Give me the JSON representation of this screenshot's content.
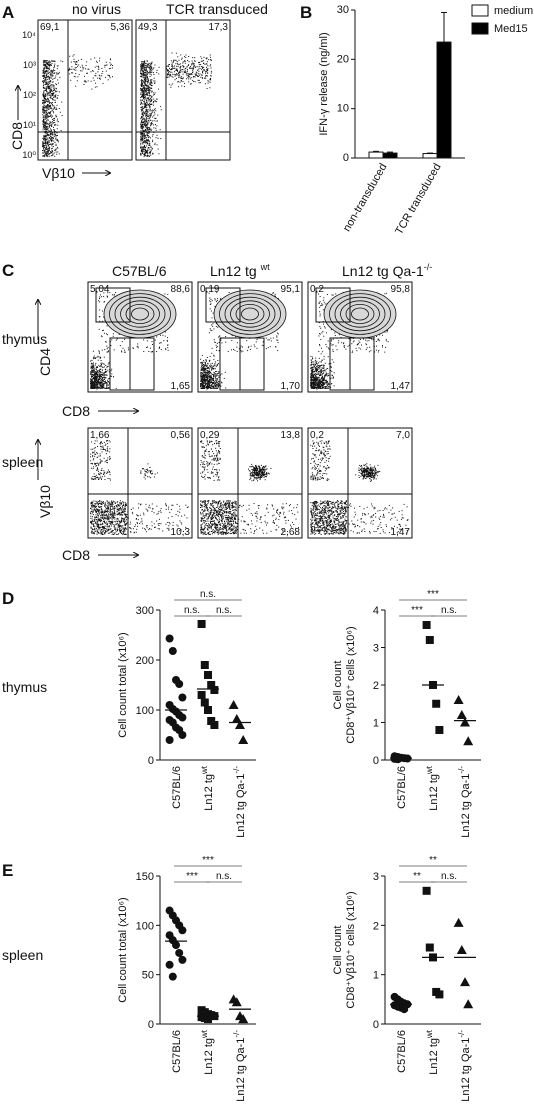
{
  "panels": {
    "A": "A",
    "B": "B",
    "C": "C",
    "D": "D",
    "E": "E"
  },
  "panelA": {
    "headers": [
      "no virus",
      "TCR transduced"
    ],
    "yaxis": "CD8",
    "xaxis": "Vβ10",
    "plots": [
      {
        "ul": "69,1",
        "ur": "5,36"
      },
      {
        "ul": "49,3",
        "ur": "17,3"
      }
    ],
    "ticks": [
      "10⁰",
      "10¹",
      "10²",
      "10³",
      "10⁴"
    ]
  },
  "panelC": {
    "headers": [
      "C57BL/6",
      "Ln12 tg wt",
      "Ln12 tg Qa-1-/-"
    ],
    "header_sup": [
      "",
      "wt",
      "-/-"
    ],
    "header_base": [
      "C57BL/6",
      "Ln12 tg ",
      "Ln12 tg Qa-1"
    ],
    "rows": [
      {
        "label": "thymus",
        "yaxis": "CD4",
        "xaxis": "CD8",
        "plots": [
          {
            "ul": "5,04",
            "ur": "88,6",
            "ll": "2,31",
            "lr": "1,65"
          },
          {
            "ul": "0,19",
            "ur": "95,1",
            "ll": "1,79",
            "lr": "1,70"
          },
          {
            "ul": "0,2",
            "ur": "95,8",
            "ll": "1,52",
            "lr": "1,47"
          }
        ]
      },
      {
        "label": "spleen",
        "yaxis": "Vβ10",
        "xaxis": "CD8",
        "plots": [
          {
            "ul": "1,66",
            "ur": "0,56",
            "lr": "10,3"
          },
          {
            "ul": "0,29",
            "ur": "13,8",
            "lr": "2,68"
          },
          {
            "ul": "0,2",
            "ur": "7,0",
            "lr": "1,47"
          }
        ]
      }
    ]
  },
  "chart_data": [
    {
      "id": "B",
      "type": "bar",
      "categories": [
        "non-transduced",
        "TCR transduced"
      ],
      "series": [
        {
          "name": "medium",
          "color": "#ffffff",
          "values": [
            1.2,
            0.9
          ],
          "errors": [
            0.15,
            0.1
          ]
        },
        {
          "name": "Med15",
          "color": "#000000",
          "values": [
            1.0,
            23.5
          ],
          "errors": [
            0.2,
            6.0
          ]
        }
      ],
      "ylabel": "IFN-γ release (ng/ml)",
      "ylim": [
        0,
        30
      ],
      "yticks": [
        0,
        10,
        20,
        30
      ],
      "legend": "top-right"
    },
    {
      "id": "D-total",
      "type": "scatter",
      "row": "thymus",
      "categories": [
        "C57BL/6",
        "Ln12 tg wt",
        "Ln12 tg Qa-1-/-"
      ],
      "ylabel": "Cell count total (x10⁶)",
      "ylim": [
        0,
        300
      ],
      "yticks": [
        0,
        100,
        200,
        300
      ],
      "markers": [
        "circle",
        "square",
        "triangle"
      ],
      "groups": [
        [
          243,
          218,
          160,
          152,
          125,
          110,
          102,
          97,
          90,
          85,
          80,
          75,
          65,
          60,
          50,
          40
        ],
        [
          272,
          190,
          170,
          150,
          140,
          130,
          115,
          100,
          78,
          70
        ],
        [
          110,
          82,
          70,
          40
        ]
      ],
      "means": [
        100,
        142,
        75
      ],
      "significance": [
        {
          "from": 0,
          "to": 2,
          "label": "n.s."
        },
        {
          "from": 0,
          "to": 1,
          "label": "n.s."
        },
        {
          "from": 1,
          "to": 2,
          "label": "n.s."
        }
      ]
    },
    {
      "id": "D-cd8",
      "type": "scatter",
      "row": "thymus",
      "categories": [
        "C57BL/6",
        "Ln12 tg wt",
        "Ln12 tg Qa-1-/-"
      ],
      "ylabel": "Cell count CD8⁺Vβ10⁺ cells (x10⁶)",
      "ylim": [
        0,
        4
      ],
      "yticks": [
        0,
        1,
        2,
        3,
        4
      ],
      "markers": [
        "circle",
        "square",
        "triangle"
      ],
      "groups": [
        [
          0.1,
          0.08,
          0.06,
          0.05,
          0.04,
          0.03,
          0.02
        ],
        [
          3.6,
          3.2,
          2.0,
          1.5,
          0.8
        ],
        [
          1.6,
          1.2,
          1.0,
          0.5
        ]
      ],
      "means": [
        0.05,
        2.0,
        1.05
      ],
      "significance": [
        {
          "from": 0,
          "to": 2,
          "label": "***"
        },
        {
          "from": 0,
          "to": 1,
          "label": "***"
        },
        {
          "from": 1,
          "to": 2,
          "label": "n.s."
        }
      ]
    },
    {
      "id": "E-total",
      "type": "scatter",
      "row": "spleen",
      "categories": [
        "C57BL/6",
        "Ln12 tg wt",
        "Ln12 tg Qa-1-/-"
      ],
      "ylabel": "Cell count total (x10⁶)",
      "ylim": [
        0,
        150
      ],
      "yticks": [
        0,
        50,
        100,
        150
      ],
      "markers": [
        "circle",
        "square",
        "triangle"
      ],
      "groups": [
        [
          115,
          110,
          105,
          100,
          95,
          90,
          85,
          80,
          72,
          65,
          60,
          48
        ],
        [
          14,
          12,
          10,
          9,
          8,
          7,
          6,
          5
        ],
        [
          25,
          22,
          8,
          5
        ]
      ],
      "means": [
        84,
        8,
        15
      ],
      "significance": [
        {
          "from": 0,
          "to": 2,
          "label": "***"
        },
        {
          "from": 0,
          "to": 1,
          "label": "***"
        },
        {
          "from": 1,
          "to": 2,
          "label": "n.s."
        }
      ]
    },
    {
      "id": "E-cd8",
      "type": "scatter",
      "row": "spleen",
      "categories": [
        "C57BL/6",
        "Ln12 tg wt",
        "Ln12 tg Qa-1-/-"
      ],
      "ylabel": "Cell count CD8⁺Vβ10⁺ cells (x10⁶)",
      "ylim": [
        0,
        3
      ],
      "yticks": [
        0,
        1,
        2,
        3
      ],
      "markers": [
        "circle",
        "square",
        "triangle"
      ],
      "groups": [
        [
          0.55,
          0.5,
          0.45,
          0.42,
          0.4,
          0.38,
          0.35,
          0.33,
          0.3
        ],
        [
          2.7,
          1.55,
          1.35,
          0.65,
          0.6
        ],
        [
          2.05,
          1.5,
          0.85,
          0.4
        ]
      ],
      "means": [
        0.4,
        1.35,
        1.35
      ],
      "significance": [
        {
          "from": 0,
          "to": 2,
          "label": "**"
        },
        {
          "from": 0,
          "to": 1,
          "label": "**"
        },
        {
          "from": 1,
          "to": 2,
          "label": "n.s."
        }
      ]
    }
  ],
  "rowlabels": {
    "D": "thymus",
    "E": "spleen"
  },
  "xcats": {
    "a": "C57BL/6",
    "b": "Ln12 tg",
    "b_sup": "wt",
    "c": "Ln12 tg Qa-1",
    "c_sup": "-/-"
  }
}
